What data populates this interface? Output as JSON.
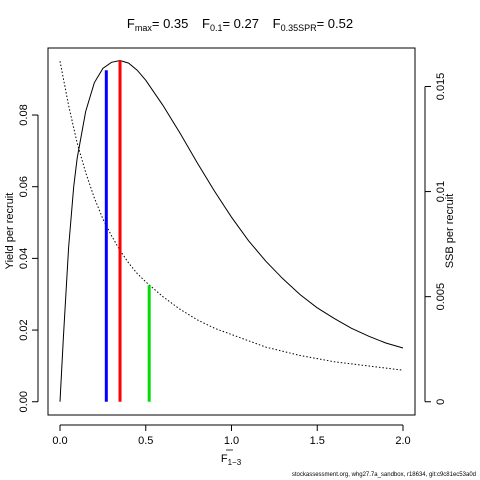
{
  "chart_data": {
    "type": "line",
    "title": {
      "fmax_value": "= 0.35",
      "f01_value": "= 0.27",
      "fspr_value": "= 0.52"
    },
    "xlabel": "F",
    "xlabel_sub": "1−3",
    "ylabel_left": "Yield per recruit",
    "ylabel_right": "SSB per recruit",
    "xlim": [
      -0.07,
      2.07
    ],
    "ylim_left": [
      -0.0037,
      0.0987
    ],
    "ylim_right": [
      -0.00063,
      0.01683
    ],
    "x_ticks": [
      {
        "value": 0.0,
        "label": "0.0"
      },
      {
        "value": 0.5,
        "label": "0.5"
      },
      {
        "value": 1.0,
        "label": "1.0"
      },
      {
        "value": 1.5,
        "label": "1.5"
      },
      {
        "value": 2.0,
        "label": "2.0"
      }
    ],
    "y_left_ticks": [
      {
        "value": 0.0,
        "label": "0.00"
      },
      {
        "value": 0.02,
        "label": "0.02"
      },
      {
        "value": 0.04,
        "label": "0.04"
      },
      {
        "value": 0.06,
        "label": "0.06"
      },
      {
        "value": 0.08,
        "label": "0.08"
      }
    ],
    "y_right_ticks": [
      {
        "value": 0.0,
        "label": "0"
      },
      {
        "value": 0.005,
        "label": "0.005"
      },
      {
        "value": 0.01,
        "label": "0.01"
      },
      {
        "value": 0.015,
        "label": "0.015"
      }
    ],
    "series": [
      {
        "axis": "left",
        "style": "solid",
        "x": [
          0.0,
          0.02,
          0.05,
          0.08,
          0.1,
          0.15,
          0.2,
          0.25,
          0.3,
          0.35,
          0.4,
          0.45,
          0.5,
          0.6,
          0.7,
          0.8,
          0.9,
          1.0,
          1.1,
          1.2,
          1.3,
          1.4,
          1.5,
          1.6,
          1.7,
          1.8,
          1.9,
          2.0
        ],
        "values": [
          0.0,
          0.018,
          0.043,
          0.06,
          0.068,
          0.081,
          0.089,
          0.093,
          0.0947,
          0.0952,
          0.0945,
          0.0925,
          0.0897,
          0.0827,
          0.0749,
          0.0667,
          0.0588,
          0.0515,
          0.0449,
          0.0392,
          0.0343,
          0.0299,
          0.0262,
          0.0232,
          0.0205,
          0.0183,
          0.0164,
          0.015
        ]
      },
      {
        "axis": "right",
        "style": "dotted",
        "x": [
          0.0,
          0.05,
          0.1,
          0.15,
          0.2,
          0.25,
          0.3,
          0.35,
          0.4,
          0.45,
          0.5,
          0.6,
          0.7,
          0.8,
          0.9,
          1.0,
          1.2,
          1.4,
          1.6,
          1.8,
          2.0
        ],
        "values": [
          0.0162,
          0.0141,
          0.0123,
          0.0109,
          0.0097,
          0.0087,
          0.0079,
          0.0072,
          0.0066,
          0.0061,
          0.0057,
          0.005,
          0.0044,
          0.0039,
          0.0035,
          0.0032,
          0.0026,
          0.0022,
          0.0019,
          0.0017,
          0.0015
        ]
      }
    ],
    "reference_lines": [
      {
        "name": "F0.1",
        "x": 0.27,
        "y_top": 0.0925,
        "axis": "left",
        "color": "#0000ff"
      },
      {
        "name": "Fmax",
        "x": 0.35,
        "y_top": 0.0952,
        "axis": "left",
        "color": "#ff0000"
      },
      {
        "name": "F0.35SPR",
        "x": 0.52,
        "y_top": 0.0325,
        "axis": "left",
        "color": "#00dd00"
      }
    ],
    "footnote": "stockassessment.org, whg27.7a_sandbox, r18634, git:c9c81ec53a0d"
  }
}
